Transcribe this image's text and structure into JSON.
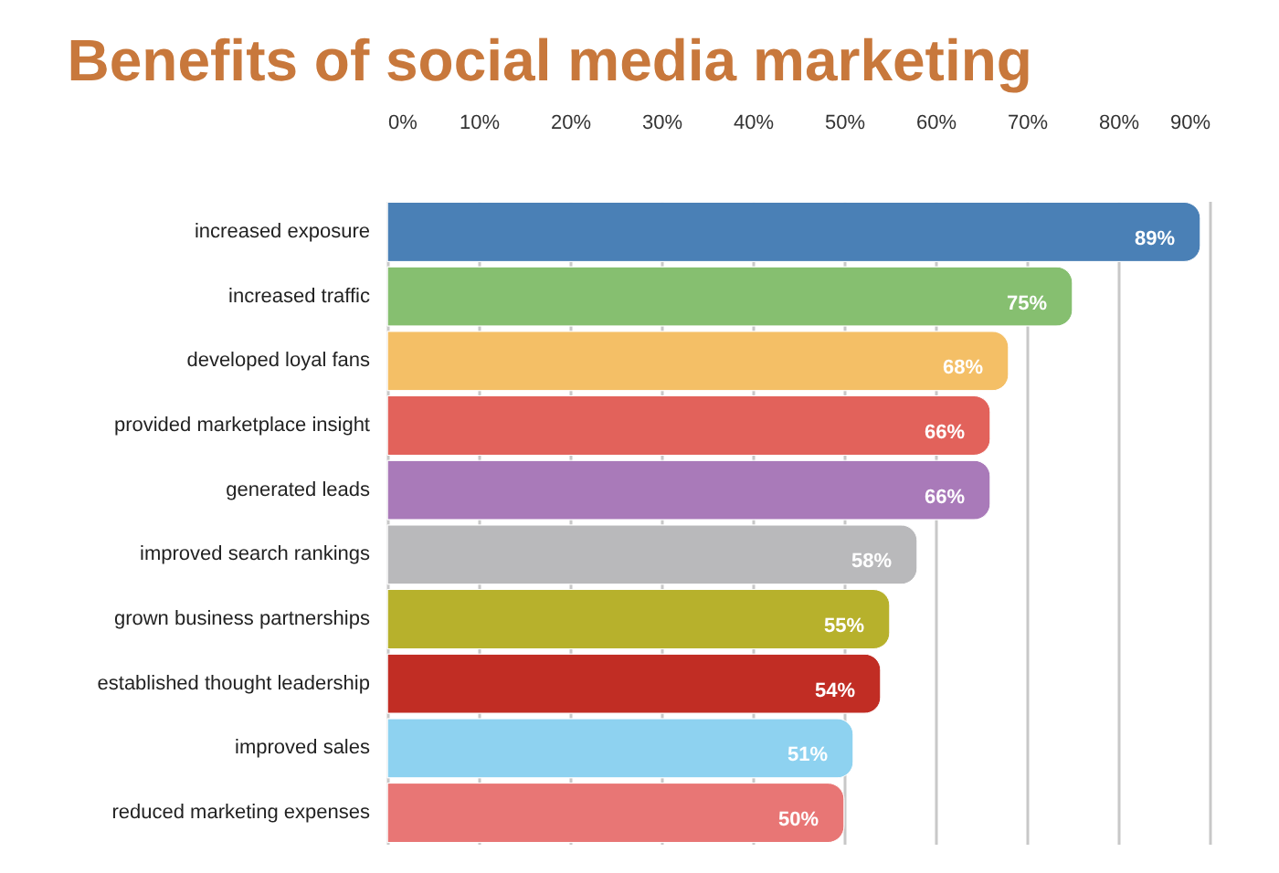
{
  "chart_data": {
    "type": "bar",
    "orientation": "horizontal",
    "title": "Benefits of social media marketing",
    "categories": [
      "increased exposure",
      "increased traffic",
      "developed loyal fans",
      "provided marketplace insight",
      "generated leads",
      "improved search rankings",
      "grown business partnerships",
      "established thought leadership",
      "improved sales",
      "reduced marketing expenses"
    ],
    "values": [
      89,
      75,
      68,
      66,
      66,
      58,
      55,
      54,
      51,
      50
    ],
    "value_labels": [
      "89%",
      "75%",
      "68%",
      "66%",
      "66%",
      "58%",
      "55%",
      "54%",
      "51%",
      "50%"
    ],
    "colors": [
      "#4a80b6",
      "#86bf70",
      "#f4bf66",
      "#e2625b",
      "#a97ab9",
      "#b9b9bb",
      "#b7b12c",
      "#c12d24",
      "#8ed2f0",
      "#e87675"
    ],
    "xlim": [
      0,
      90
    ],
    "xticks": [
      {
        "value": 0,
        "label": "0%"
      },
      {
        "value": 10,
        "label": "10%"
      },
      {
        "value": 20,
        "label": "20%"
      },
      {
        "value": 30,
        "label": "30%"
      },
      {
        "value": 40,
        "label": "40%"
      },
      {
        "value": 50,
        "label": "50%"
      },
      {
        "value": 60,
        "label": "60%"
      },
      {
        "value": 70,
        "label": "70%"
      },
      {
        "value": 80,
        "label": "80%"
      },
      {
        "value": 90,
        "label": "90%"
      }
    ],
    "grid": "x"
  }
}
